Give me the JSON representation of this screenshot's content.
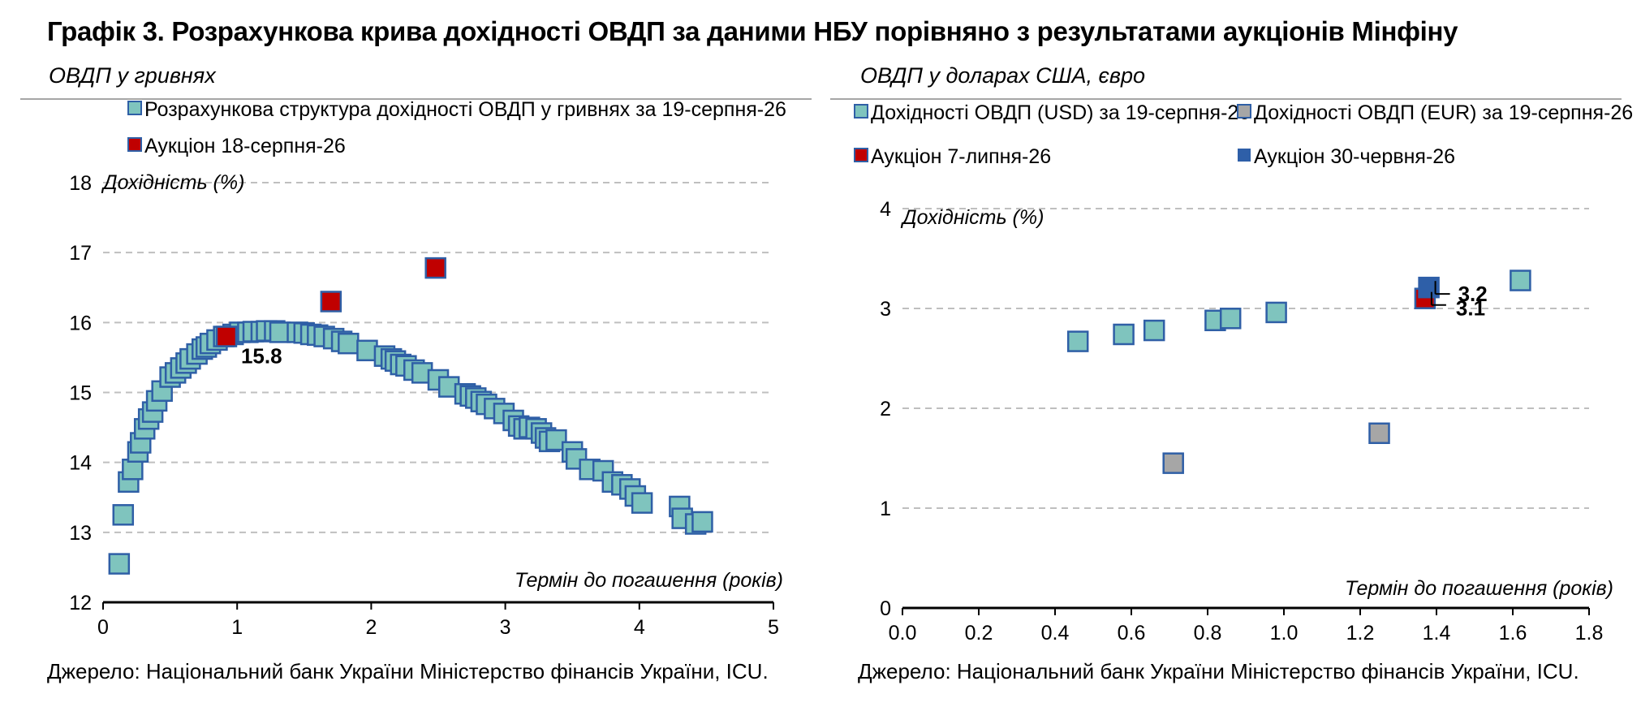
{
  "title": "Графік 3. Розрахункова крива дохідності ОВДП за даними НБУ порівняно з результатами аукціонів Мінфіну",
  "source": "Джерело: Національний банк України Міністерство фінансів України, ICU.",
  "colors": {
    "teal": "#7fc4be",
    "blue_border": "#2f5fa6",
    "red": "#c00000",
    "grey": "#a6a6a6",
    "blue": "#2e5fa8",
    "grid": "#bfbfbf"
  },
  "chart_data": [
    {
      "type": "scatter",
      "subtitle": "ОВДП у гривнях",
      "ylabel": "Дохідність (%)",
      "xlabel": "Термін до погашення (років)",
      "xlim": [
        0,
        5
      ],
      "ylim": [
        12,
        18
      ],
      "xticks": [
        "0",
        "1",
        "2",
        "3",
        "4",
        "5"
      ],
      "yticks": [
        "12",
        "13",
        "14",
        "15",
        "16",
        "17",
        "18"
      ],
      "grid": true,
      "legend_position": "top",
      "series": [
        {
          "name": "Розрахункова структура дохідності ОВДП у гривнях за 19-серпня-26",
          "style": "teal",
          "points": [
            [
              0.12,
              12.55
            ],
            [
              0.15,
              13.25
            ],
            [
              0.19,
              13.72
            ],
            [
              0.22,
              13.9
            ],
            [
              0.26,
              14.15
            ],
            [
              0.28,
              14.28
            ],
            [
              0.31,
              14.48
            ],
            [
              0.34,
              14.62
            ],
            [
              0.37,
              14.72
            ],
            [
              0.4,
              14.88
            ],
            [
              0.44,
              15.02
            ],
            [
              0.5,
              15.22
            ],
            [
              0.54,
              15.28
            ],
            [
              0.58,
              15.35
            ],
            [
              0.62,
              15.42
            ],
            [
              0.65,
              15.48
            ],
            [
              0.7,
              15.55
            ],
            [
              0.74,
              15.62
            ],
            [
              0.77,
              15.65
            ],
            [
              0.8,
              15.7
            ],
            [
              0.85,
              15.75
            ],
            [
              0.9,
              15.8
            ],
            [
              0.97,
              15.83
            ],
            [
              1.02,
              15.86
            ],
            [
              1.08,
              15.86
            ],
            [
              1.12,
              15.87
            ],
            [
              1.18,
              15.87
            ],
            [
              1.22,
              15.88
            ],
            [
              1.28,
              15.88
            ],
            [
              1.32,
              15.86
            ],
            [
              1.45,
              15.86
            ],
            [
              1.5,
              15.85
            ],
            [
              1.55,
              15.83
            ],
            [
              1.6,
              15.82
            ],
            [
              1.65,
              15.8
            ],
            [
              1.72,
              15.77
            ],
            [
              1.78,
              15.73
            ],
            [
              1.83,
              15.7
            ],
            [
              1.97,
              15.6
            ],
            [
              2.1,
              15.52
            ],
            [
              2.15,
              15.48
            ],
            [
              2.18,
              15.45
            ],
            [
              2.22,
              15.4
            ],
            [
              2.26,
              15.38
            ],
            [
              2.32,
              15.32
            ],
            [
              2.38,
              15.28
            ],
            [
              2.5,
              15.18
            ],
            [
              2.58,
              15.08
            ],
            [
              2.7,
              14.98
            ],
            [
              2.74,
              14.95
            ],
            [
              2.78,
              14.92
            ],
            [
              2.82,
              14.87
            ],
            [
              2.86,
              14.83
            ],
            [
              2.92,
              14.77
            ],
            [
              2.99,
              14.7
            ],
            [
              3.06,
              14.6
            ],
            [
              3.1,
              14.52
            ],
            [
              3.14,
              14.48
            ],
            [
              3.18,
              14.5
            ],
            [
              3.23,
              14.48
            ],
            [
              3.27,
              14.42
            ],
            [
              3.3,
              14.35
            ],
            [
              3.33,
              14.3
            ],
            [
              3.38,
              14.32
            ],
            [
              3.5,
              14.15
            ],
            [
              3.53,
              14.05
            ],
            [
              3.63,
              13.9
            ],
            [
              3.73,
              13.88
            ],
            [
              3.8,
              13.72
            ],
            [
              3.87,
              13.68
            ],
            [
              3.93,
              13.62
            ],
            [
              3.97,
              13.52
            ],
            [
              4.02,
              13.42
            ],
            [
              4.3,
              13.37
            ],
            [
              4.32,
              13.2
            ],
            [
              4.42,
              13.12
            ],
            [
              4.47,
              13.15
            ]
          ]
        },
        {
          "name": "Аукціон 18-серпня-26",
          "style": "red",
          "points": [
            [
              0.92,
              15.8
            ],
            [
              1.7,
              16.3
            ],
            [
              2.48,
              16.78
            ]
          ]
        }
      ],
      "annotations": [
        {
          "text": "15.8",
          "x": 0.92,
          "y": 15.8
        }
      ]
    },
    {
      "type": "scatter",
      "subtitle": "ОВДП у доларах США, євро",
      "ylabel": "Дохідність (%)",
      "xlabel": "Термін до погашення (років)",
      "xlim": [
        0,
        1.8
      ],
      "ylim": [
        0,
        4
      ],
      "xticks": [
        "0.0",
        "0.2",
        "0.4",
        "0.6",
        "0.8",
        "1.0",
        "1.2",
        "1.4",
        "1.6",
        "1.8"
      ],
      "yticks": [
        "0",
        "1",
        "2",
        "3",
        "4"
      ],
      "grid": true,
      "legend_position": "top",
      "series": [
        {
          "name": "Дохідності ОВДП (USD) за 19-серпня-26",
          "style": "teal",
          "points": [
            [
              0.46,
              2.67
            ],
            [
              0.58,
              2.74
            ],
            [
              0.66,
              2.78
            ],
            [
              0.82,
              2.88
            ],
            [
              0.86,
              2.9
            ],
            [
              0.98,
              2.96
            ],
            [
              1.62,
              3.28
            ]
          ]
        },
        {
          "name": "Дохідності ОВДП (EUR) за 19-серпня-26",
          "style": "grey",
          "points": [
            [
              0.71,
              1.45
            ],
            [
              1.25,
              1.75
            ]
          ]
        },
        {
          "name": "Аукціон 7-липня-26",
          "style": "red",
          "points": [
            [
              1.37,
              3.1
            ]
          ]
        },
        {
          "name": "Аукціон 30-червня-26",
          "style": "blue",
          "points": [
            [
              1.38,
              3.21
            ]
          ]
        }
      ],
      "annotations": [
        {
          "text": "3.1",
          "x": 1.37,
          "y": 3.1
        },
        {
          "text": "3.2",
          "x": 1.38,
          "y": 3.21
        }
      ]
    }
  ]
}
